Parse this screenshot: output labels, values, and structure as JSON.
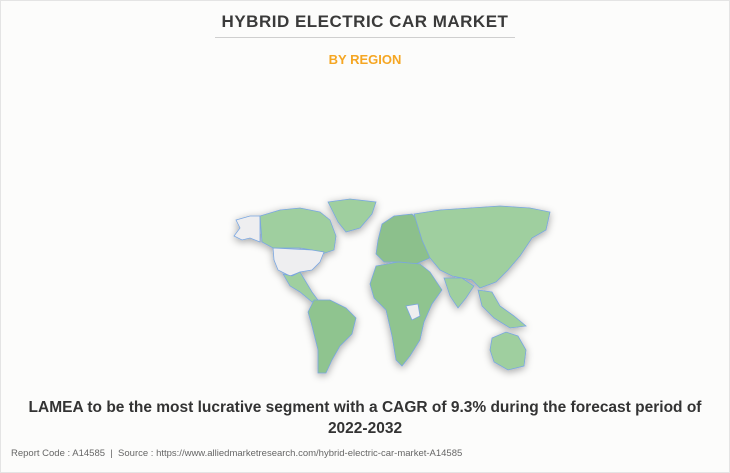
{
  "header": {
    "title": "HYBRID ELECTRIC CAR MARKET",
    "subtitle": "BY REGION"
  },
  "map": {
    "colors": {
      "highlight": "#9fcf9f",
      "other": "#eeeef0",
      "border": "#7aa6e0"
    },
    "highlighted_regions": [
      "Canada",
      "Greenland",
      "Mexico",
      "South America",
      "Europe",
      "Asia",
      "Africa",
      "Australia"
    ],
    "grey_regions": [
      "United States",
      "Alaska"
    ]
  },
  "headline": "LAMEA to be the most lucrative segment with a CAGR of 9.3% during the forecast period of 2022-2032",
  "footer": {
    "report_code": "Report Code : A14585",
    "separator": "|",
    "source": "Source : https://www.alliedmarketresearch.com/hybrid-electric-car-market-A14585"
  }
}
